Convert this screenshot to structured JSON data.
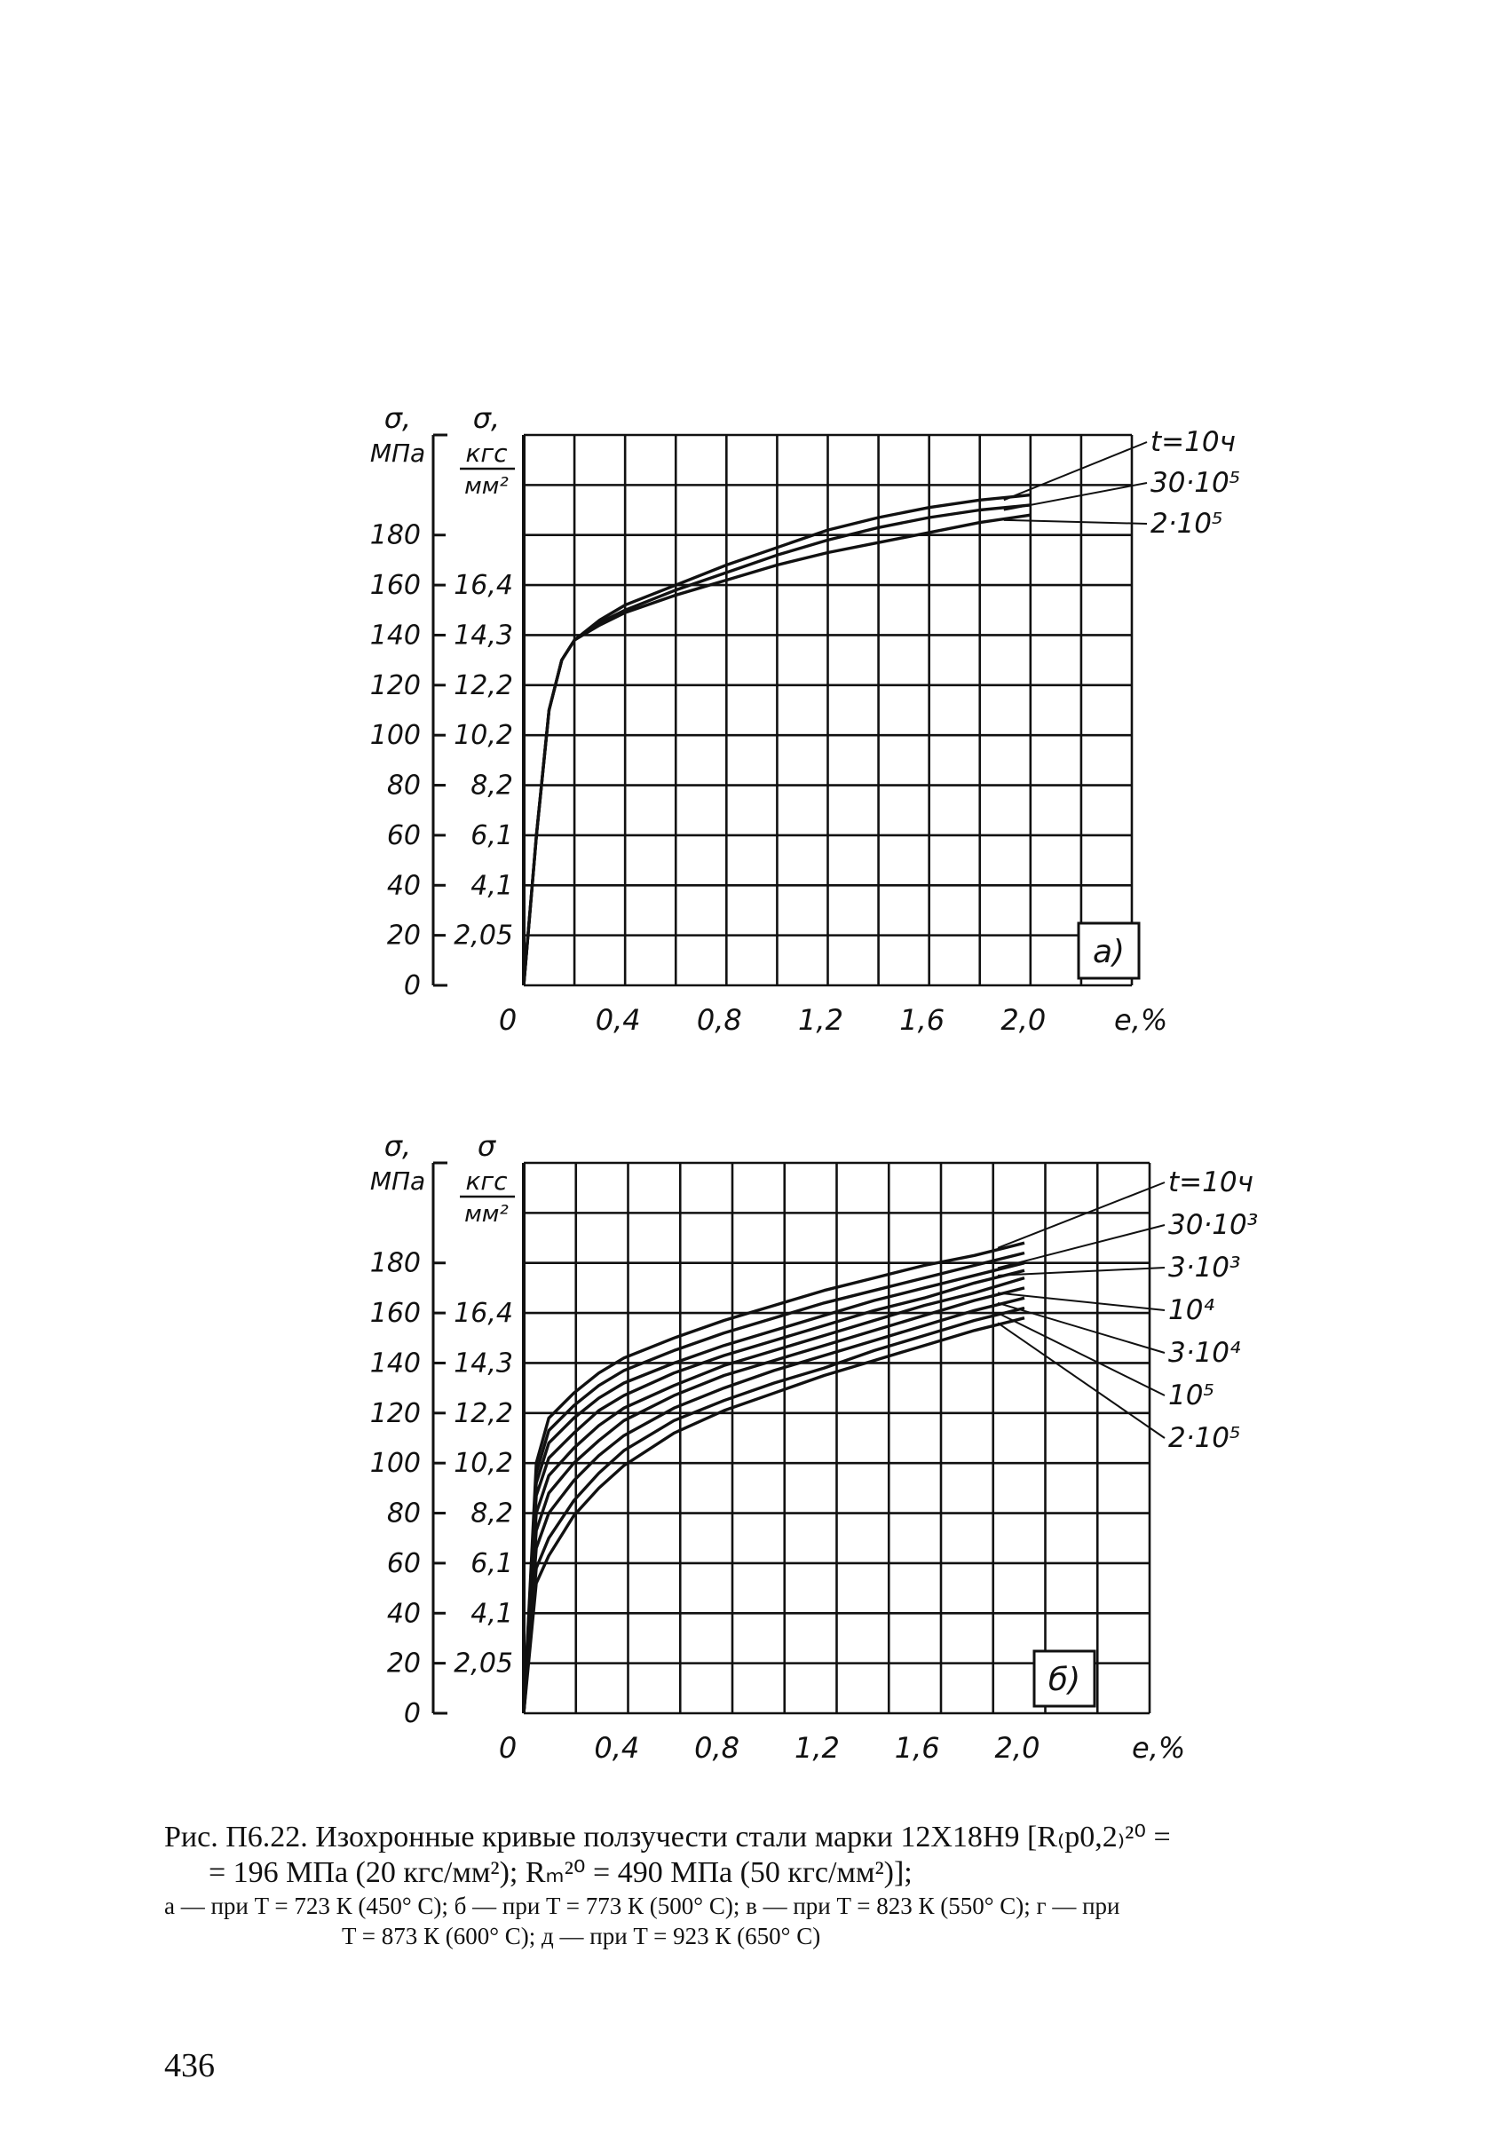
{
  "chart_data": [
    {
      "type": "line",
      "panel_label": "а)",
      "xlabel": "e,%",
      "ylabel_left": [
        "σ,",
        "МПа"
      ],
      "ylabel_right": [
        "σ,",
        "кгс",
        "мм²"
      ],
      "x_ticks": [
        "0",
        "0,4",
        "0,8",
        "1,2",
        "1,6",
        "2,0"
      ],
      "x_tick_values": [
        0,
        0.4,
        0.8,
        1.2,
        1.6,
        2.0
      ],
      "y_ticks_left": [
        "0",
        "20",
        "40",
        "60",
        "80",
        "100",
        "120",
        "140",
        "160",
        "180"
      ],
      "y_ticks_right": [
        "2,05",
        "4,1",
        "6,1",
        "8,2",
        "10,2",
        "12,2",
        "14,3",
        "16,4"
      ],
      "xlim": [
        0,
        2.4
      ],
      "ylim": [
        0,
        220
      ],
      "grid": true,
      "series": [
        {
          "name": "t=10ч",
          "x": [
            0,
            0.05,
            0.1,
            0.15,
            0.2,
            0.3,
            0.4,
            0.6,
            0.8,
            1.0,
            1.2,
            1.4,
            1.6,
            1.8,
            2.0
          ],
          "y": [
            0,
            60,
            110,
            130,
            138,
            146,
            152,
            160,
            168,
            175,
            182,
            187,
            191,
            194,
            196
          ]
        },
        {
          "name": "30·10⁵",
          "x": [
            0,
            0.05,
            0.1,
            0.15,
            0.2,
            0.3,
            0.4,
            0.6,
            0.8,
            1.0,
            1.2,
            1.4,
            1.6,
            1.8,
            2.0
          ],
          "y": [
            0,
            60,
            110,
            130,
            138,
            145,
            150,
            158,
            165,
            172,
            178,
            183,
            187,
            190,
            192
          ]
        },
        {
          "name": "2·10⁵",
          "x": [
            0,
            0.05,
            0.1,
            0.15,
            0.2,
            0.3,
            0.4,
            0.6,
            0.8,
            1.0,
            1.2,
            1.4,
            1.6,
            1.8,
            2.0
          ],
          "y": [
            0,
            60,
            110,
            130,
            138,
            144,
            149,
            156,
            162,
            168,
            173,
            177,
            181,
            185,
            188
          ]
        }
      ]
    },
    {
      "type": "line",
      "panel_label": "б)",
      "xlabel": "e,%",
      "ylabel_left": [
        "σ,",
        "МПа"
      ],
      "ylabel_right": [
        "σ",
        "кгс",
        "мм²"
      ],
      "x_ticks": [
        "0",
        "0,4",
        "0,8",
        "1,2",
        "1,6",
        "2,0"
      ],
      "x_tick_values": [
        0,
        0.4,
        0.8,
        1.2,
        1.6,
        2.0
      ],
      "y_ticks_left": [
        "0",
        "20",
        "40",
        "60",
        "80",
        "100",
        "120",
        "140",
        "160",
        "180"
      ],
      "y_ticks_right": [
        "2,05",
        "4,1",
        "6,1",
        "8,2",
        "10,2",
        "12,2",
        "14,3",
        "16,4"
      ],
      "xlim": [
        0,
        2.5
      ],
      "ylim": [
        0,
        220
      ],
      "grid": true,
      "series": [
        {
          "name": "t=10ч",
          "x": [
            0,
            0.05,
            0.1,
            0.2,
            0.3,
            0.4,
            0.6,
            0.8,
            1.0,
            1.2,
            1.4,
            1.6,
            1.8,
            2.0
          ],
          "y": [
            0,
            100,
            118,
            128,
            136,
            142,
            150,
            157,
            163,
            169,
            174,
            179,
            183,
            188
          ]
        },
        {
          "name": "",
          "x": [
            0,
            0.05,
            0.1,
            0.2,
            0.3,
            0.4,
            0.6,
            0.8,
            1.0,
            1.2,
            1.4,
            1.6,
            1.8,
            2.0
          ],
          "y": [
            0,
            96,
            113,
            123,
            131,
            137,
            145,
            152,
            158,
            164,
            169,
            174,
            179,
            184
          ]
        },
        {
          "name": "30·10³",
          "x": [
            0,
            0.05,
            0.1,
            0.2,
            0.3,
            0.4,
            0.6,
            0.8,
            1.0,
            1.2,
            1.4,
            1.6,
            1.8,
            2.0
          ],
          "y": [
            0,
            92,
            108,
            118,
            126,
            132,
            140,
            147,
            153,
            159,
            165,
            170,
            175,
            180
          ]
        },
        {
          "name": "3·10³",
          "x": [
            0,
            0.05,
            0.1,
            0.2,
            0.3,
            0.4,
            0.6,
            0.8,
            1.0,
            1.2,
            1.4,
            1.6,
            1.8,
            2.0
          ],
          "y": [
            0,
            87,
            102,
            112,
            121,
            127,
            136,
            143,
            149,
            155,
            161,
            166,
            172,
            177
          ]
        },
        {
          "name": "",
          "x": [
            0,
            0.05,
            0.1,
            0.2,
            0.3,
            0.4,
            0.6,
            0.8,
            1.0,
            1.2,
            1.4,
            1.6,
            1.8,
            2.0
          ],
          "y": [
            0,
            80,
            95,
            106,
            115,
            122,
            131,
            139,
            145,
            151,
            157,
            163,
            168,
            174
          ]
        },
        {
          "name": "10⁴",
          "x": [
            0,
            0.05,
            0.1,
            0.2,
            0.3,
            0.4,
            0.6,
            0.8,
            1.0,
            1.2,
            1.4,
            1.6,
            1.8,
            2.0
          ],
          "y": [
            0,
            73,
            88,
            100,
            109,
            117,
            127,
            135,
            141,
            147,
            153,
            159,
            165,
            170
          ]
        },
        {
          "name": "3·10⁴",
          "x": [
            0,
            0.05,
            0.1,
            0.2,
            0.3,
            0.4,
            0.6,
            0.8,
            1.0,
            1.2,
            1.4,
            1.6,
            1.8,
            2.0
          ],
          "y": [
            0,
            66,
            80,
            93,
            103,
            111,
            122,
            130,
            137,
            143,
            149,
            155,
            161,
            166
          ]
        },
        {
          "name": "10⁵",
          "x": [
            0,
            0.05,
            0.1,
            0.2,
            0.3,
            0.4,
            0.6,
            0.8,
            1.0,
            1.2,
            1.4,
            1.6,
            1.8,
            2.0
          ],
          "y": [
            0,
            58,
            70,
            85,
            96,
            105,
            117,
            125,
            132,
            138,
            145,
            151,
            157,
            162
          ]
        },
        {
          "name": "2·10⁵",
          "x": [
            0,
            0.05,
            0.1,
            0.2,
            0.3,
            0.4,
            0.6,
            0.8,
            1.0,
            1.2,
            1.4,
            1.6,
            1.8,
            2.0
          ],
          "y": [
            0,
            52,
            63,
            79,
            90,
            99,
            112,
            121,
            128,
            135,
            141,
            147,
            153,
            158
          ]
        }
      ]
    }
  ],
  "caption": {
    "line1": "Рис. П6.22. Изохронные кривые ползучести стали марки 12Х18Н9 [R₍p0,2₎²⁰ =",
    "line2": "= 196 МПа (20 кгс/мм²); Rₘ²⁰ = 490 МПа (50 кгс/мм²)];",
    "line3": "а — при T = 723 К (450° С); б — при T = 773 К (500° С); в — при T = 823 К (550° С); г — при",
    "line4": "T = 873 К (600° С); д — при T = 923 К (650° С)"
  },
  "page_number": "436"
}
